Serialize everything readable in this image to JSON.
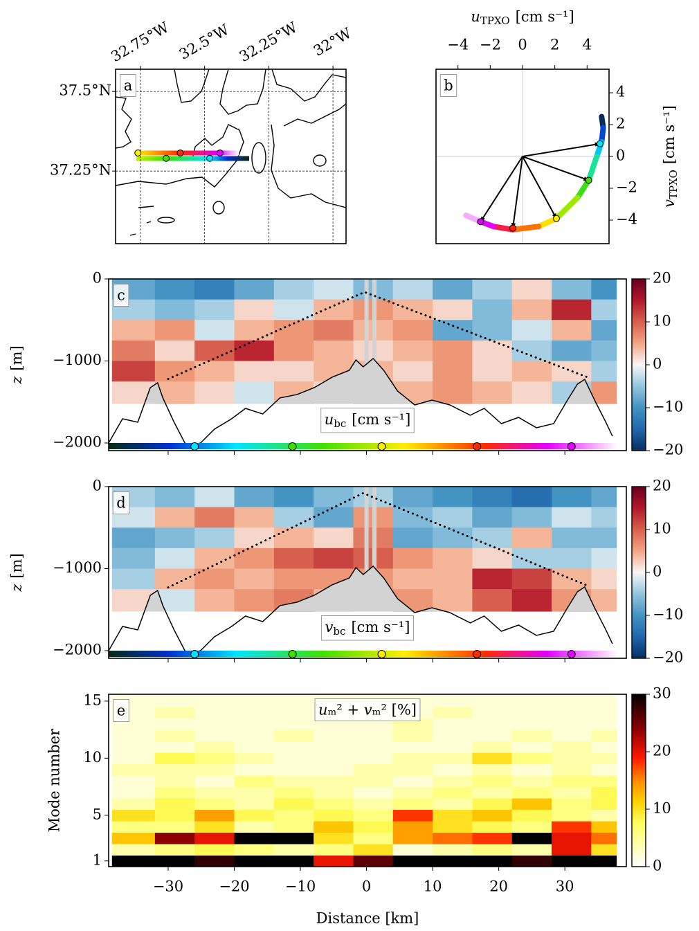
{
  "chart_data": [
    {
      "type": "map",
      "panel_label": "a",
      "xlim": [
        -32.847,
        -31.949
      ],
      "ylim": [
        37.022,
        37.57
      ],
      "xticks": [
        {
          "value": -32.75,
          "label": "32.75°W"
        },
        {
          "value": -32.5,
          "label": "32.5°W"
        },
        {
          "value": -32.25,
          "label": "32.25°W"
        },
        {
          "value": -32,
          "label": "32°W"
        }
      ],
      "yticks": [
        {
          "value": 37.25,
          "label": "37.25°N"
        },
        {
          "value": 37.5,
          "label": "37.5°N"
        }
      ],
      "markers": {
        "lon": [
          -32.76,
          -32.595,
          -32.44,
          -32.65,
          -32.48
        ],
        "lat": [
          37.307,
          37.307,
          37.307,
          37.29,
          37.29
        ],
        "colors": [
          "#ffee00",
          "#ff2a00",
          "#e000ff",
          "#3fe000",
          "#00e5ff"
        ]
      }
    },
    {
      "type": "hodograph",
      "panel_label": "b",
      "x_label": {
        "var": "u",
        "sub": "TPXO",
        "unit": "[cm s⁻¹]"
      },
      "y_label": {
        "var": "v",
        "sub": "TPXO",
        "unit": "[cm s⁻¹]"
      },
      "xlim": [
        -5.36,
        5.36
      ],
      "ylim": [
        -5.48,
        5.48
      ],
      "xticks": [
        {
          "value": -4,
          "label": "−4"
        },
        {
          "value": -2,
          "label": "−2"
        },
        0,
        2,
        4
      ],
      "yticks": [
        {
          "value": -4,
          "label": "−4"
        },
        {
          "value": -2,
          "label": "−2"
        },
        0,
        2,
        4
      ],
      "curve": {
        "u": [
          4.9,
          5.0,
          4.9,
          4.6,
          4.1,
          3.4,
          2.1,
          1.0,
          -0.6,
          -1.8,
          -2.6,
          -3.5
        ],
        "v": [
          2.5,
          1.8,
          0.9,
          0.0,
          -1.5,
          -2.6,
          -3.9,
          -4.4,
          -4.6,
          -4.4,
          -4.1,
          -3.7
        ]
      },
      "arrows": {
        "u": [
          4.8,
          4.1,
          2.1,
          -0.6,
          -2.6
        ],
        "v": [
          0.8,
          -1.5,
          -3.9,
          -4.5,
          -4.1
        ],
        "colors": [
          "#00e5ff",
          "#3fe000",
          "#ffee00",
          "#ff2a00",
          "#e000ff"
        ]
      }
    },
    {
      "type": "section",
      "panel_label": "c",
      "label": {
        "var": "u",
        "sub": "bc",
        "unit": "[cm s⁻¹]"
      },
      "y_label": {
        "var": "z",
        "unit": "[m]"
      },
      "xlim": [
        -39,
        39.3
      ],
      "ylim": [
        -2093,
        0
      ],
      "xticks": [
        -30,
        -20,
        -10,
        0,
        10,
        20,
        30
      ],
      "yticks": [
        {
          "value": -2000,
          "label": "−2000"
        },
        {
          "value": -1000,
          "label": "−1000"
        },
        0
      ],
      "xbins": [
        -38.5,
        -32,
        -26,
        -20,
        -14,
        -8,
        -2,
        4,
        10,
        16,
        22,
        28,
        34,
        37.8
      ],
      "ybins": [
        0,
        -250,
        -500,
        -750,
        -1000,
        -1250,
        -1520
      ],
      "z": [
        [
          -8,
          -10,
          -12,
          -8,
          -4,
          -2,
          -6,
          -3,
          -8,
          -4,
          2,
          -6,
          -10
        ],
        [
          -4,
          -6,
          -4,
          2,
          -2,
          4,
          6,
          4,
          2,
          -6,
          4,
          14,
          -4
        ],
        [
          4,
          6,
          -2,
          4,
          6,
          8,
          4,
          6,
          -8,
          -6,
          -2,
          4,
          -8
        ],
        [
          8,
          2,
          10,
          14,
          6,
          4,
          2,
          4,
          6,
          2,
          -4,
          -8,
          -6
        ],
        [
          12,
          6,
          4,
          2,
          2,
          4,
          4,
          2,
          6,
          2,
          4,
          2,
          -4
        ],
        [
          2,
          4,
          2,
          -2,
          4,
          2,
          6,
          4,
          6,
          4,
          2,
          -4,
          6
        ]
      ],
      "clim": [
        -20,
        20
      ],
      "colormap": "RdBu_r",
      "cticks": [
        {
          "value": -20,
          "label": "−20"
        },
        {
          "value": -10,
          "label": "−10"
        },
        0,
        10,
        20
      ],
      "data_bottom": -1520,
      "gaps": [
        0,
        1.2
      ],
      "bathymetry": {
        "x": [
          -39,
          -36.9,
          -34.6,
          -32.7,
          -31.6,
          -30.8,
          -29.1,
          -27.2,
          -25.1,
          -23,
          -20.4,
          -18.3,
          -15.7,
          -13.1,
          -10.5,
          -7.9,
          -5.2,
          -2.6,
          -1.6,
          -0.5,
          1,
          2.6,
          4.7,
          7.3,
          9.9,
          12.6,
          15.7,
          17.8,
          20.4,
          23,
          25.7,
          28.3,
          30.4,
          31.9,
          33,
          34.6,
          36.1,
          37.2
        ],
        "y": [
          -2000,
          -1705,
          -1747,
          -1325,
          -1266,
          -1451,
          -1747,
          -2042,
          -2000,
          -1831,
          -1705,
          -1578,
          -1646,
          -1451,
          -1409,
          -1325,
          -1198,
          -1114,
          -987,
          -1072,
          -970,
          -1114,
          -1367,
          -1536,
          -1477,
          -1536,
          -1662,
          -1578,
          -1764,
          -1688,
          -1814,
          -1764,
          -1477,
          -1283,
          -1224,
          -1494,
          -1730,
          -1916
        ]
      },
      "rays": {
        "x": [
          -30,
          -0.3,
          33.5
        ],
        "y": [
          -1220,
          -160,
          -1200
        ]
      },
      "markers": {
        "x": [
          -26,
          -11.2,
          2.3,
          16.7,
          31
        ],
        "colors": [
          "#00e5ff",
          "#3fe000",
          "#ffee00",
          "#ff2a00",
          "#e000ff"
        ]
      }
    },
    {
      "type": "section",
      "panel_label": "d",
      "label": {
        "var": "v",
        "sub": "bc",
        "unit": "[cm s⁻¹]"
      },
      "y_label": {
        "var": "z",
        "unit": "[m]"
      },
      "xlim": [
        -39,
        39.3
      ],
      "ylim": [
        -2093,
        0
      ],
      "xticks": [
        -30,
        -20,
        -10,
        0,
        10,
        20,
        30
      ],
      "yticks": [
        {
          "value": -2000,
          "label": "−2000"
        },
        {
          "value": -1000,
          "label": "−1000"
        },
        0
      ],
      "xbins": [
        -38.5,
        -32,
        -26,
        -20,
        -14,
        -8,
        -2,
        4,
        10,
        16,
        22,
        28,
        34,
        37.8
      ],
      "ybins": [
        0,
        -250,
        -500,
        -750,
        -1000,
        -1250,
        -1520
      ],
      "z": [
        [
          -4,
          -6,
          -2,
          -8,
          -10,
          -6,
          -4,
          -8,
          -10,
          -12,
          -14,
          -10,
          -8
        ],
        [
          -2,
          4,
          8,
          4,
          -4,
          -8,
          6,
          -6,
          -4,
          -8,
          -6,
          -2,
          -4
        ],
        [
          -8,
          -6,
          -4,
          2,
          4,
          2,
          8,
          -8,
          -6,
          -4,
          4,
          -6,
          -6
        ],
        [
          -6,
          -2,
          4,
          6,
          10,
          12,
          10,
          6,
          4,
          2,
          -4,
          -4,
          -2
        ],
        [
          -4,
          4,
          6,
          4,
          6,
          6,
          6,
          4,
          4,
          14,
          12,
          4,
          2
        ],
        [
          2,
          -2,
          4,
          6,
          8,
          4,
          2,
          6,
          4,
          10,
          14,
          6,
          4
        ]
      ],
      "clim": [
        -20,
        20
      ],
      "colormap": "RdBu_r",
      "cticks": [
        {
          "value": -20,
          "label": "−20"
        },
        {
          "value": -10,
          "label": "−10"
        },
        0,
        10,
        20
      ],
      "data_bottom": -1520,
      "gaps": [
        0,
        1.2
      ],
      "bathymetry": {
        "x": [
          -39,
          -36.9,
          -34.6,
          -32.7,
          -31.6,
          -30.8,
          -29.1,
          -27.2,
          -25.1,
          -23,
          -20.4,
          -18.3,
          -15.7,
          -13.1,
          -10.5,
          -7.9,
          -5.2,
          -2.6,
          -1.6,
          -0.5,
          1,
          2.6,
          4.7,
          7.3,
          9.9,
          12.6,
          15.7,
          17.8,
          20.4,
          23,
          25.7,
          28.3,
          30.4,
          31.9,
          33,
          34.6,
          36.1,
          37.2
        ],
        "y": [
          -2000,
          -1705,
          -1747,
          -1325,
          -1266,
          -1451,
          -1747,
          -2042,
          -2000,
          -1831,
          -1705,
          -1578,
          -1646,
          -1451,
          -1409,
          -1325,
          -1198,
          -1114,
          -987,
          -1072,
          -970,
          -1114,
          -1367,
          -1536,
          -1477,
          -1536,
          -1662,
          -1578,
          -1764,
          -1688,
          -1814,
          -1764,
          -1477,
          -1283,
          -1224,
          -1494,
          -1730,
          -1916
        ]
      },
      "rays": {
        "x": [
          -30,
          -0.5,
          33.5
        ],
        "y": [
          -1230,
          -80,
          -1210
        ]
      },
      "markers": {
        "x": [
          -26,
          -11.2,
          2.3,
          16.7,
          31
        ],
        "colors": [
          "#00e5ff",
          "#3fe000",
          "#ffee00",
          "#ff2a00",
          "#e000ff"
        ]
      }
    },
    {
      "type": "heatmap",
      "panel_label": "e",
      "label": "𝑢ₘ² + 𝑣ₘ² [%]",
      "y_label": "Mode number",
      "x_label": "Distance [km]",
      "xlim": [
        -39,
        39.3
      ],
      "ylim": [
        0.5,
        15.6
      ],
      "xticks": [
        {
          "value": -30,
          "label": "−30"
        },
        {
          "value": -20,
          "label": "−20"
        },
        {
          "value": -10,
          "label": "−10"
        },
        0,
        10,
        20,
        30
      ],
      "yticks": [
        1,
        5,
        10,
        15
      ],
      "xbins": [
        -38.5,
        -32,
        -26,
        -20,
        -14,
        -8,
        -2,
        4,
        10,
        16,
        22,
        28,
        34,
        37.8
      ],
      "ybins": [
        0.5,
        1.5,
        2.5,
        3.5,
        4.5,
        5.5,
        6.5,
        7.5,
        8.5,
        9.5,
        10.5,
        11.5,
        12.5,
        13.5,
        14.5,
        15.5
      ],
      "z": [
        [
          30,
          30,
          28,
          30,
          30,
          20,
          26,
          30,
          30,
          30,
          28,
          30,
          30
        ],
        [
          4,
          6,
          8,
          6,
          4,
          6,
          10,
          2,
          4,
          6,
          4,
          20,
          10
        ],
        [
          12,
          24,
          20,
          30,
          30,
          10,
          6,
          14,
          16,
          18,
          30,
          20,
          16
        ],
        [
          6,
          6,
          10,
          4,
          6,
          12,
          8,
          14,
          10,
          8,
          6,
          18,
          12
        ],
        [
          10,
          8,
          14,
          8,
          6,
          8,
          6,
          18,
          10,
          12,
          8,
          6,
          4
        ],
        [
          4,
          8,
          6,
          4,
          8,
          6,
          4,
          6,
          4,
          8,
          12,
          6,
          8
        ],
        [
          2,
          6,
          4,
          4,
          6,
          4,
          2,
          4,
          6,
          4,
          6,
          4,
          8
        ],
        [
          2,
          4,
          2,
          6,
          4,
          4,
          4,
          2,
          4,
          6,
          4,
          6,
          6
        ],
        [
          4,
          4,
          4,
          2,
          2,
          2,
          4,
          4,
          2,
          4,
          2,
          4,
          2
        ],
        [
          2,
          8,
          6,
          4,
          2,
          2,
          2,
          4,
          4,
          10,
          6,
          4,
          4
        ],
        [
          2,
          2,
          4,
          2,
          2,
          2,
          2,
          2,
          2,
          4,
          2,
          4,
          2
        ],
        [
          2,
          4,
          2,
          2,
          4,
          2,
          2,
          4,
          2,
          2,
          4,
          2,
          4
        ],
        [
          2,
          2,
          2,
          2,
          2,
          2,
          2,
          4,
          2,
          2,
          2,
          2,
          2
        ],
        [
          2,
          4,
          2,
          2,
          2,
          2,
          2,
          2,
          4,
          2,
          2,
          2,
          2
        ],
        [
          2,
          2,
          2,
          2,
          2,
          2,
          2,
          2,
          2,
          2,
          2,
          2,
          2
        ]
      ],
      "clim": [
        0,
        30
      ],
      "colormap": "hot_r",
      "cticks": [
        0,
        10,
        20,
        30
      ],
      "gaps": [
        0,
        1.2
      ]
    }
  ]
}
